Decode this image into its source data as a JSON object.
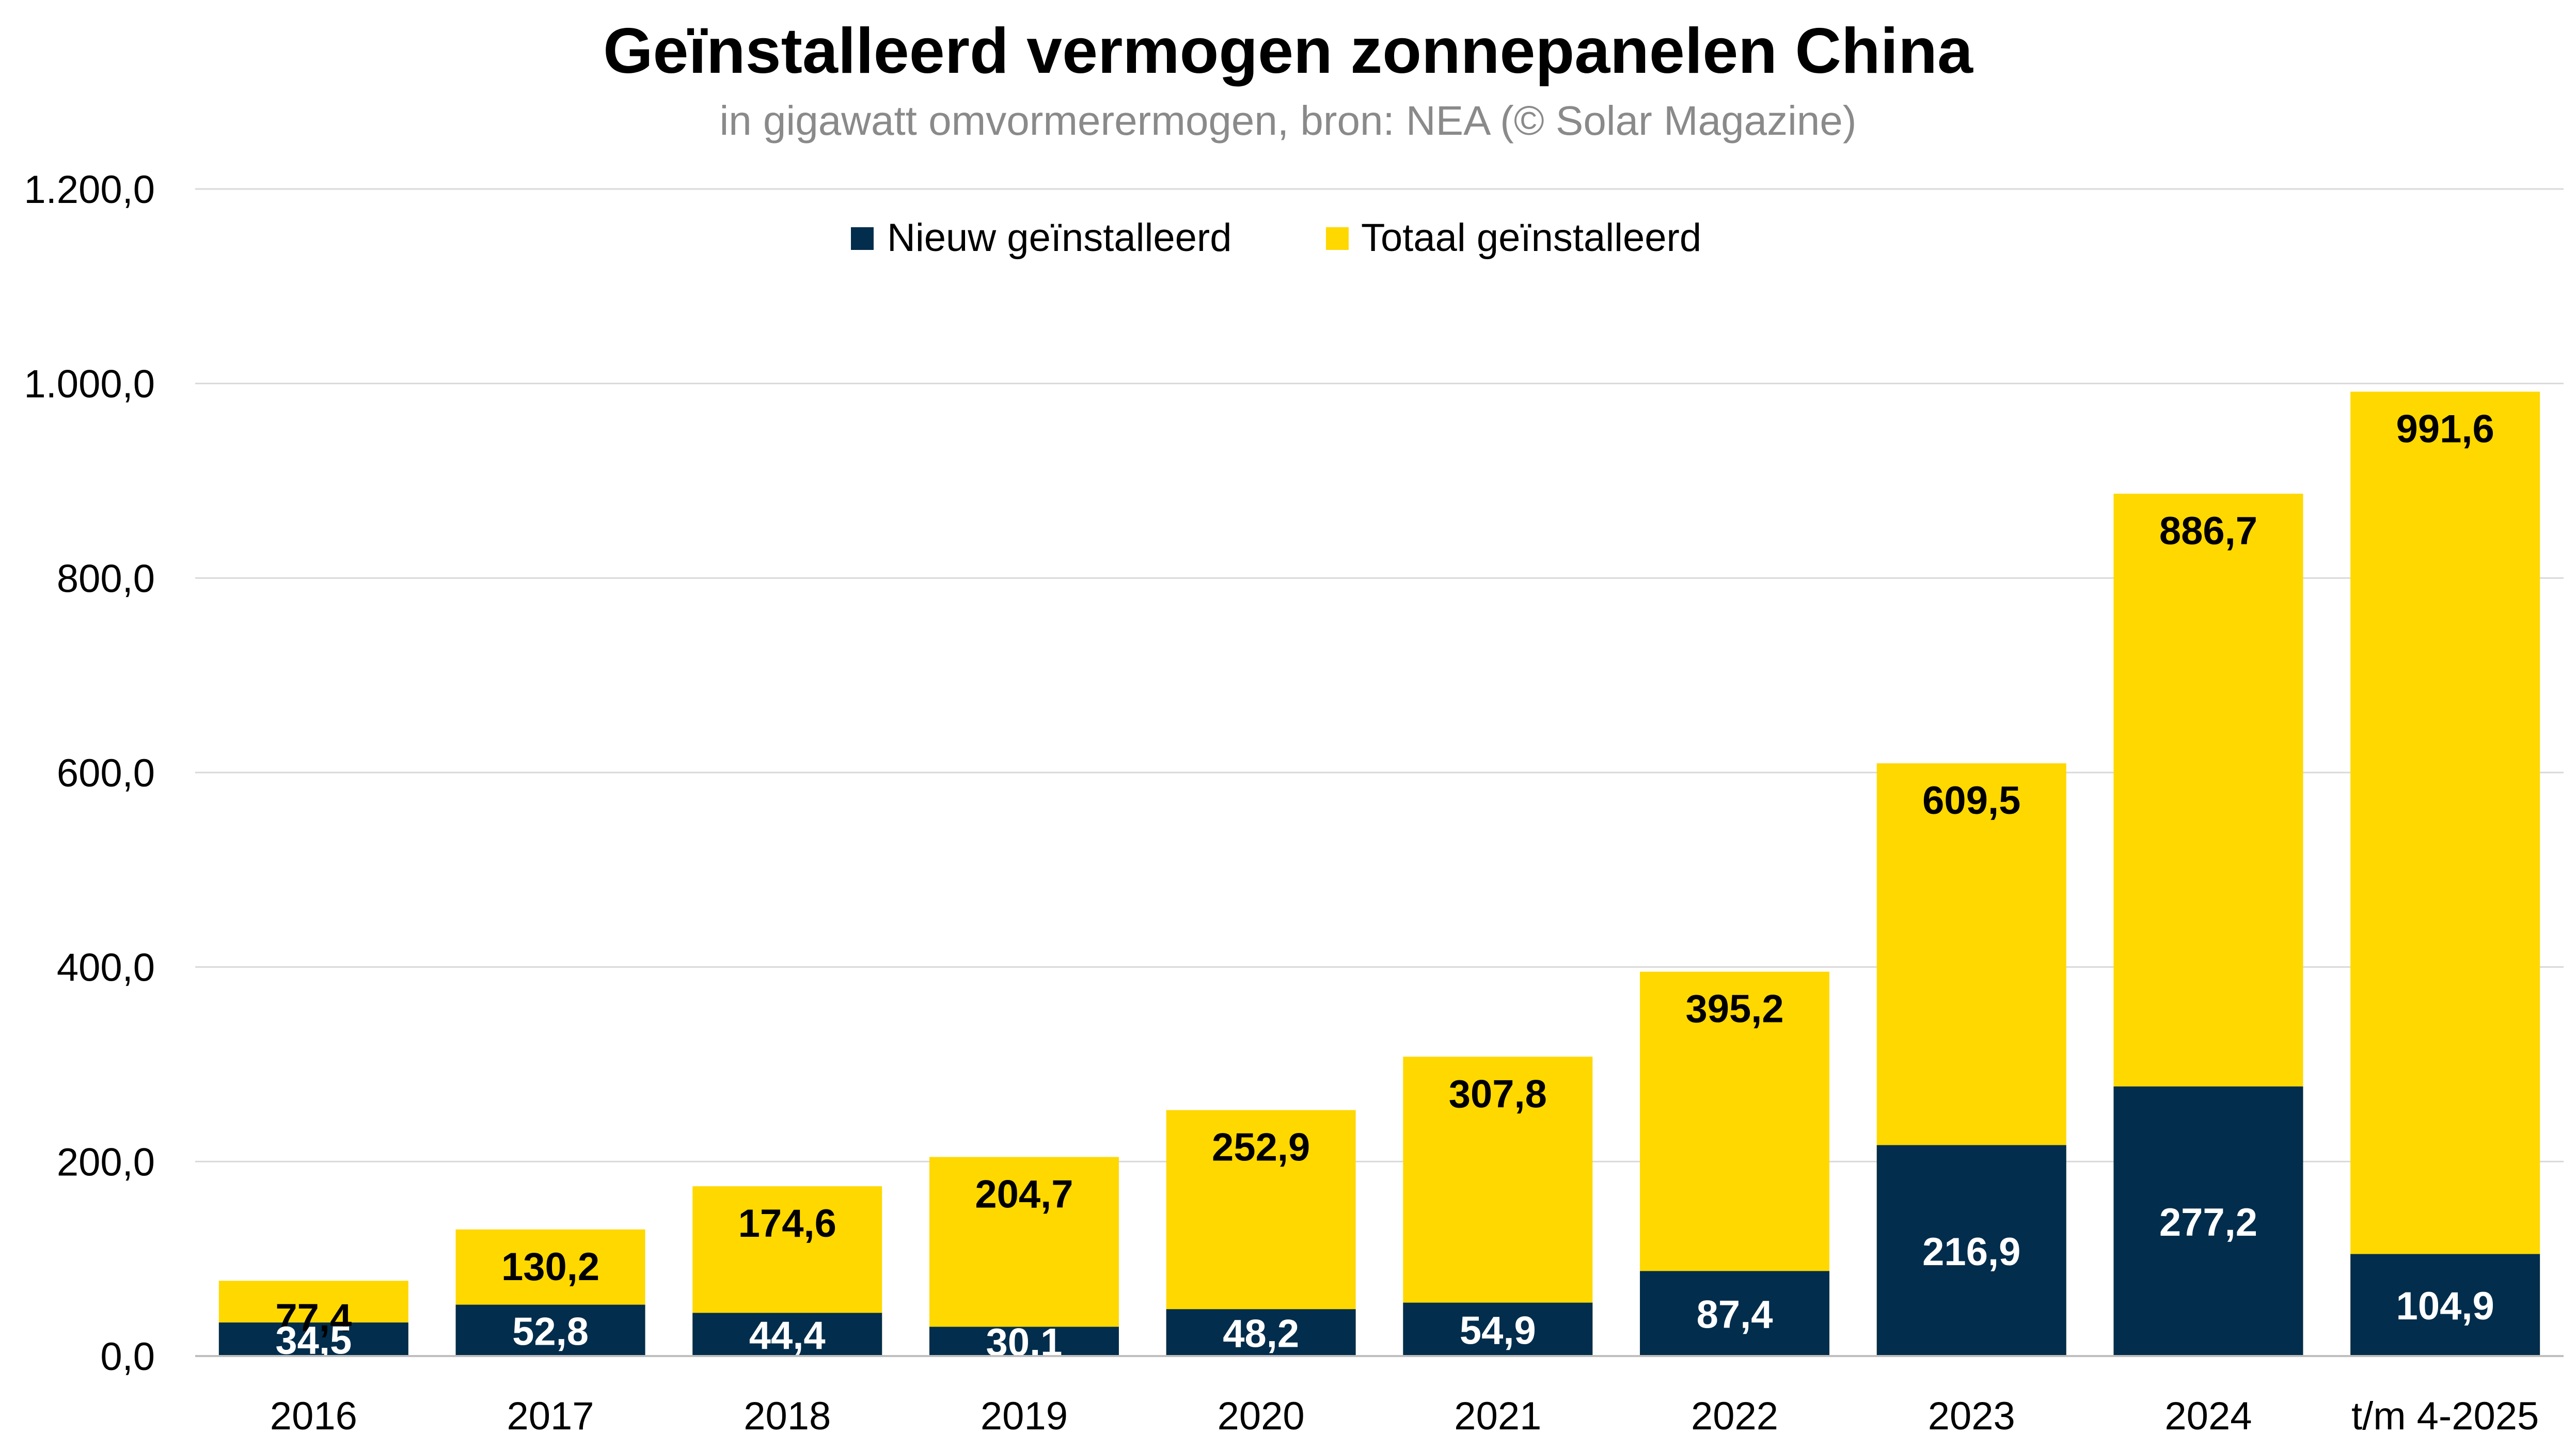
{
  "chart_data": {
    "type": "bar",
    "title": "Geïnstalleerd vermogen zonnepanelen China",
    "subtitle": "in gigawatt omvormerermogen, bron: NEA (© Solar Magazine)",
    "xlabel": "",
    "ylabel": "",
    "ylim": [
      0,
      1200
    ],
    "yticks": [
      0,
      200,
      400,
      600,
      800,
      1000,
      1200
    ],
    "ytick_labels": [
      "0,0",
      "200,0",
      "400,0",
      "600,0",
      "800,0",
      "1.000,0",
      "1.200,0"
    ],
    "grid": true,
    "legend_position": "top-center",
    "categories": [
      "2016",
      "2017",
      "2018",
      "2019",
      "2020",
      "2021",
      "2022",
      "2023",
      "2024",
      "t/m 4-2025"
    ],
    "series": [
      {
        "name": "Nieuw geïnstalleerd",
        "color": "#022d4c",
        "label_color": "#ffffff",
        "values": [
          34.5,
          52.8,
          44.4,
          30.1,
          48.2,
          54.9,
          87.4,
          216.9,
          277.2,
          104.9
        ],
        "labels": [
          "34,5",
          "52,8",
          "44,4",
          "30,1",
          "48,2",
          "54,9",
          "87,4",
          "216,9",
          "277,2",
          "104,9"
        ]
      },
      {
        "name": "Totaal geïnstalleerd",
        "color": "#ffd800",
        "label_color": "#000000",
        "values": [
          77.4,
          130.2,
          174.6,
          204.7,
          252.9,
          307.8,
          395.2,
          609.5,
          886.7,
          991.6
        ],
        "labels": [
          "77,4",
          "130,2",
          "174,6",
          "204,7",
          "252,9",
          "307,8",
          "395,2",
          "609,5",
          "886,7",
          "991,6"
        ]
      }
    ]
  }
}
